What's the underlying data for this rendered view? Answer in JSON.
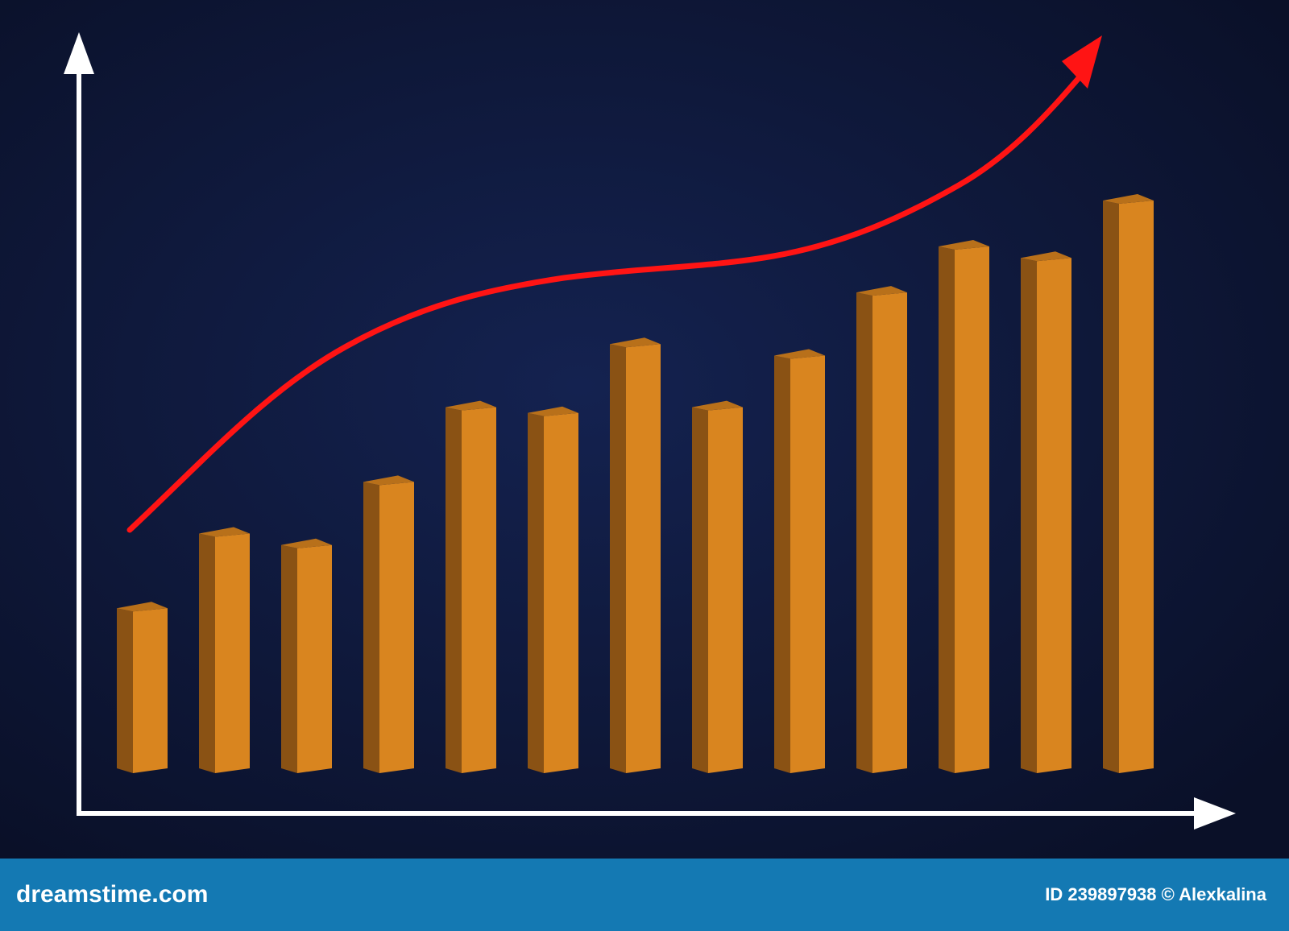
{
  "chart_data": {
    "type": "bar",
    "categories": [
      null,
      null,
      null,
      null,
      null,
      null,
      null,
      null,
      null,
      null,
      null,
      null,
      null
    ],
    "values": [
      29,
      42,
      40,
      51,
      64,
      63,
      75,
      64,
      73,
      84,
      92,
      90,
      100
    ],
    "color": "#d9851f",
    "ylim": [
      0,
      100
    ]
  },
  "footer": {
    "brand": "dreamstime.com",
    "credit": "ID 239897938 © Alexkalina"
  }
}
